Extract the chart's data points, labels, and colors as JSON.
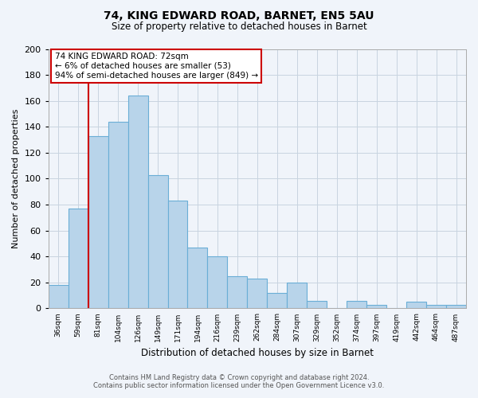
{
  "title": "74, KING EDWARD ROAD, BARNET, EN5 5AU",
  "subtitle": "Size of property relative to detached houses in Barnet",
  "xlabel": "Distribution of detached houses by size in Barnet",
  "ylabel": "Number of detached properties",
  "bar_labels": [
    "36sqm",
    "59sqm",
    "81sqm",
    "104sqm",
    "126sqm",
    "149sqm",
    "171sqm",
    "194sqm",
    "216sqm",
    "239sqm",
    "262sqm",
    "284sqm",
    "307sqm",
    "329sqm",
    "352sqm",
    "374sqm",
    "397sqm",
    "419sqm",
    "442sqm",
    "464sqm",
    "487sqm"
  ],
  "bar_values": [
    18,
    77,
    133,
    144,
    164,
    103,
    83,
    47,
    40,
    25,
    23,
    12,
    20,
    6,
    0,
    6,
    3,
    0,
    5,
    3,
    3
  ],
  "bar_color": "#b8d4ea",
  "bar_edge_color": "#6aaed6",
  "vline_x_index": 2,
  "vline_color": "#cc0000",
  "ylim": [
    0,
    200
  ],
  "yticks": [
    0,
    20,
    40,
    60,
    80,
    100,
    120,
    140,
    160,
    180,
    200
  ],
  "annotation_text_line1": "74 KING EDWARD ROAD: 72sqm",
  "annotation_text_line2": "← 6% of detached houses are smaller (53)",
  "annotation_text_line3": "94% of semi-detached houses are larger (849) →",
  "footer_line1": "Contains HM Land Registry data © Crown copyright and database right 2024.",
  "footer_line2": "Contains public sector information licensed under the Open Government Licence v3.0.",
  "background_color": "#f0f4fa",
  "grid_color": "#c8d4e0",
  "title_fontsize": 10,
  "subtitle_fontsize": 8.5
}
